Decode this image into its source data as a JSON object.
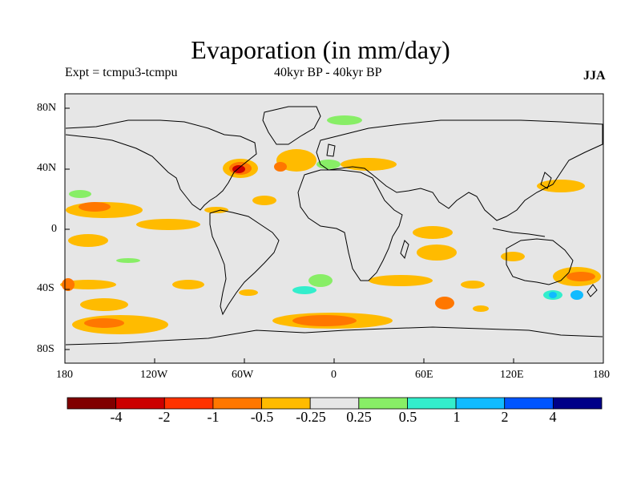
{
  "title": "Evaporation (in mm/day)",
  "expt_label": "Expt = tcmpu3-tcmpu",
  "period_label": "40kyr BP - 40kyr BP",
  "season_label": "JJA",
  "lat_ticks": [
    "80N",
    "40N",
    "0",
    "40S",
    "80S"
  ],
  "lon_ticks": [
    "180",
    "120W",
    "60W",
    "0",
    "60E",
    "120E",
    "180"
  ],
  "colorbar": {
    "colors": [
      "#800000",
      "#cc0000",
      "#ff3300",
      "#ff7700",
      "#ffbb00",
      "#e6e6e6",
      "#88ee66",
      "#33eecc",
      "#11bbff",
      "#0055ff",
      "#000088"
    ],
    "labels": [
      "-4",
      "-2",
      "-1",
      "-0.5",
      "-0.25",
      "0.25",
      "0.5",
      "1",
      "2",
      "4"
    ]
  },
  "colors": {
    "ocean_background": "#e6e6e6",
    "coastline": "#000000"
  }
}
